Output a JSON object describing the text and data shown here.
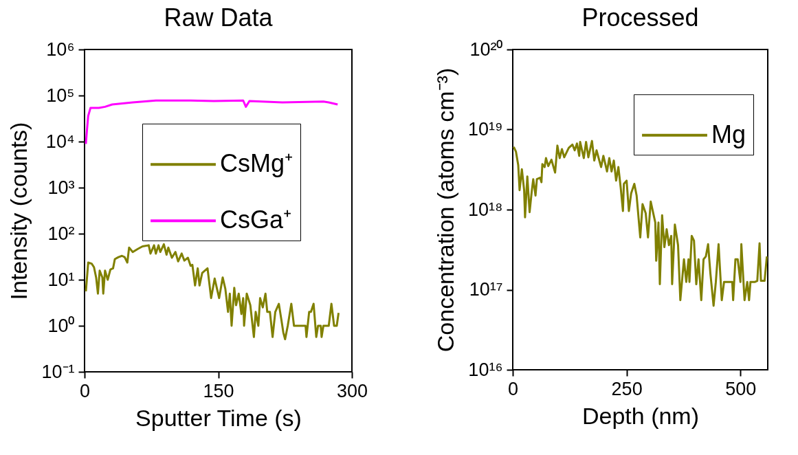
{
  "chart_data": [
    {
      "type": "line",
      "title": "Raw Data",
      "xlabel": "Sputter Time (s)",
      "ylabel": "Intensity (counts)",
      "log": "y",
      "legend": "top right",
      "xlim": [
        0,
        300
      ],
      "xticks": [
        0,
        150,
        300
      ],
      "ylim": [
        0.1,
        1000000
      ],
      "yticks": [
        {
          "value": 0.1,
          "label": "10⁻¹"
        },
        {
          "value": 1,
          "label": "10⁰"
        },
        {
          "value": 10,
          "label": "10¹"
        },
        {
          "value": 100,
          "label": "10²"
        },
        {
          "value": 1000,
          "label": "10³"
        },
        {
          "value": 10000,
          "label": "10⁴"
        },
        {
          "value": 100000,
          "label": "10⁵"
        },
        {
          "value": 1000000,
          "label": "10⁶"
        }
      ],
      "series": [
        {
          "name": "CsMg⁺",
          "color": "#808000",
          "x": [
            1.5,
            4.1,
            8,
            10.6,
            13,
            15,
            17,
            20,
            21,
            23,
            26,
            29,
            32,
            34,
            38,
            42,
            45,
            48,
            50,
            54,
            60,
            65,
            72,
            74,
            78,
            80,
            83,
            85,
            89,
            92,
            94,
            98,
            102,
            105,
            109,
            112,
            116,
            119,
            121,
            124,
            127,
            129,
            132,
            138,
            142,
            146,
            151,
            155,
            158,
            161,
            163,
            165,
            168,
            170,
            173,
            176,
            178,
            179,
            182,
            186,
            190,
            192,
            195,
            197,
            200,
            203,
            205,
            208,
            211,
            214,
            218,
            221,
            223,
            225,
            228,
            232,
            235,
            248,
            249,
            252,
            254,
            257,
            260,
            262,
            265,
            266,
            268,
            274,
            277,
            280,
            283,
            285
          ],
          "values": [
            5.6,
            23.6,
            22.3,
            18.7,
            11.2,
            5.0,
            15.8,
            11.2,
            5.0,
            15.8,
            10,
            16.7,
            17.7,
            28,
            31,
            33,
            31,
            23.6,
            50,
            40,
            47,
            53,
            56,
            37,
            56,
            37,
            56,
            40,
            59,
            35,
            50,
            30,
            40,
            25,
            37,
            26,
            30,
            20,
            21,
            7.5,
            17.7,
            7.5,
            14,
            17.7,
            4.0,
            10.6,
            4.0,
            11.2,
            6.3,
            2.0,
            5.0,
            1.0,
            6.7,
            2.8,
            5.0,
            1.8,
            4.0,
            1.0,
            5.0,
            2.8,
            0.57,
            2.0,
            1.0,
            4.0,
            2.5,
            5.0,
            2.0,
            2.0,
            0.57,
            2.0,
            3.0,
            1.3,
            0.72,
            0.51,
            1.0,
            3.0,
            1.0,
            1.0,
            0.57,
            2.0,
            2.0,
            3.0,
            0.57,
            1.0,
            1.0,
            0.57,
            1.0,
            1.0,
            3.0,
            1.0,
            1.0,
            1.9
          ]
        },
        {
          "name": "CsGa⁺",
          "color": "#ff00ff",
          "x": [
            1.5,
            2.8,
            4.1,
            6.7,
            16,
            23,
            31,
            54,
            80,
            119,
            145,
            178,
            181,
            185,
            222,
            268,
            274,
            284
          ],
          "values": [
            8900,
            18600,
            36000,
            54000,
            54000,
            57000,
            64000,
            71000,
            78000,
            78000,
            76000,
            78000,
            57000,
            76000,
            71000,
            74000,
            71000,
            64000
          ]
        }
      ]
    },
    {
      "type": "line",
      "title": "Processed",
      "xlabel": "Depth (nm)",
      "ylabel": "Concentration (atoms cm⁻³)",
      "log": "y",
      "legend": "top right",
      "xlim": [
        0,
        560
      ],
      "xticks": [
        0,
        250,
        500
      ],
      "ylim": [
        1e+16,
        1e+20
      ],
      "yticks": [
        {
          "value": 1e+16,
          "label": "10¹⁶"
        },
        {
          "value": 1e+17,
          "label": "10¹⁷"
        },
        {
          "value": 1e+18,
          "label": "10¹⁸"
        },
        {
          "value": 1e+19,
          "label": "10¹⁹"
        },
        {
          "value": 1e+20,
          "label": "10²⁰"
        }
      ],
      "series": [
        {
          "name": "Mg",
          "color": "#808000",
          "x": [
            2,
            7,
            12,
            15,
            20,
            25,
            27,
            32,
            37,
            42,
            45,
            50,
            53,
            60,
            63,
            65,
            70,
            73,
            78,
            85,
            93,
            98,
            103,
            108,
            113,
            123,
            131,
            136,
            141,
            146,
            148,
            156,
            161,
            166,
            174,
            179,
            184,
            194,
            199,
            207,
            212,
            217,
            222,
            227,
            232,
            237,
            242,
            244,
            250,
            255,
            260,
            267,
            272,
            280,
            285,
            292,
            297,
            303,
            313,
            315,
            320,
            323,
            328,
            333,
            338,
            343,
            348,
            350,
            356,
            363,
            368,
            376,
            381,
            386,
            388,
            393,
            398,
            403,
            408,
            414,
            419,
            424,
            429,
            434,
            441,
            446,
            452,
            459,
            464,
            482,
            484,
            489,
            494,
            500,
            502,
            509,
            515,
            519,
            522,
            532,
            537,
            542,
            545,
            553,
            558
          ],
          "values": [
            6.1e+18,
            5.3e+18,
            3.6e+18,
            1.75e+18,
            3.2e+18,
            1.75e+18,
            8e+17,
            2.6e+18,
            9.3e+17,
            1.75e+18,
            2.4e+18,
            1.5e+18,
            2.4e+18,
            2.5e+18,
            2.2e+18,
            3.7e+18,
            3.4e+18,
            4.4e+18,
            3.5e+18,
            4.2e+18,
            2.9e+18,
            6.3e+18,
            4.4e+18,
            5.7e+18,
            4.5e+18,
            5.9e+18,
            6.5e+18,
            5.5e+18,
            6.7e+18,
            4.7e+18,
            7e+18,
            4.4e+18,
            7e+18,
            4.5e+18,
            7.2e+18,
            4.1e+18,
            5.5e+18,
            3.4e+18,
            4.7e+18,
            3e+18,
            4.4e+18,
            3e+18,
            4.1e+18,
            2.3e+18,
            3.4e+18,
            1.9e+18,
            9.6e+17,
            2.1e+18,
            2.3e+18,
            9.6e+17,
            1.6e+18,
            2.1e+18,
            1.5e+18,
            4.5e+17,
            1.17e+18,
            9e+17,
            4.5e+17,
            1.26e+18,
            6.9e+17,
            2.3e+17,
            6.9e+17,
            1.17e+17,
            8.5e+17,
            3.4e+17,
            5.7e+17,
            3.6e+17,
            4.7e+17,
            1.17e+17,
            6.5e+17,
            3.6e+17,
            7.4e+16,
            2.4e+17,
            1.25e+17,
            2.4e+17,
            1.25e+17,
            4.7e+17,
            4.1e+17,
            1.17e+17,
            2.4e+17,
            7.4e+16,
            2.4e+17,
            2.6e+17,
            3.7e+17,
            1.6e+17,
            6.3e+16,
            1.25e+17,
            3.7e+17,
            7.4e+16,
            1.25e+17,
            1.25e+17,
            7.4e+16,
            2.4e+17,
            2.4e+17,
            1.25e+17,
            3.7e+17,
            7.4e+16,
            1.25e+17,
            7.4e+16,
            1.25e+17,
            1.25e+17,
            1.29e+17,
            3.8e+17,
            1.29e+17,
            1.29e+17,
            2.6e+17
          ]
        }
      ]
    }
  ]
}
